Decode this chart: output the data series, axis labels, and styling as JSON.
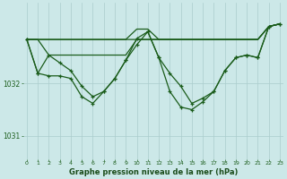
{
  "title": "Graphe pression niveau de la mer (hPa)",
  "bg_color": "#cce8e8",
  "plot_bg": "#cce8e8",
  "grid_color": "#aacccc",
  "line_color": "#1a5c1a",
  "marker_color": "#1a5c1a",
  "text_color": "#1a5c1a",
  "xlabel_color": "#1a4c1a",
  "ylim": [
    1030.55,
    1033.55
  ],
  "yticks": [
    1031,
    1032
  ],
  "xlim": [
    -0.3,
    23.3
  ],
  "xticks": [
    0,
    1,
    2,
    3,
    4,
    5,
    6,
    7,
    8,
    9,
    10,
    11,
    12,
    13,
    14,
    15,
    16,
    17,
    18,
    19,
    20,
    21,
    22,
    23
  ],
  "series1": [
    1032.85,
    1032.2,
    1032.15,
    1032.15,
    1032.1,
    1031.75,
    1031.62,
    1031.85,
    1032.1,
    1032.45,
    1032.87,
    1033.0,
    1032.5,
    1031.85,
    1031.55,
    1031.5,
    1031.65,
    1031.85,
    1032.25,
    1032.5,
    1032.55,
    1032.5,
    1033.1,
    1033.15
  ],
  "series2": [
    1032.85,
    1032.85,
    1032.55,
    1032.55,
    1032.55,
    1032.55,
    1032.55,
    1032.55,
    1032.55,
    1032.55,
    1032.85,
    1032.85,
    1032.85,
    1032.85,
    1032.85,
    1032.85,
    1032.85,
    1032.85,
    1032.85,
    1032.85,
    1032.85,
    1032.85,
    1033.1,
    1033.15
  ],
  "series3": [
    1032.85,
    1032.85,
    1032.85,
    1032.85,
    1032.85,
    1032.85,
    1032.85,
    1032.85,
    1032.85,
    1032.85,
    1033.05,
    1033.05,
    1032.85,
    1032.85,
    1032.85,
    1032.85,
    1032.85,
    1032.85,
    1032.85,
    1032.85,
    1032.85,
    1032.85,
    1033.1,
    1033.15
  ],
  "series4": [
    1032.85,
    1032.85,
    1032.85,
    1032.85,
    1032.85,
    1032.85,
    1032.85,
    1032.85,
    1032.85,
    1032.85,
    1032.85,
    1032.85,
    1032.85,
    1032.85,
    1032.85,
    1032.85,
    1032.85,
    1032.85,
    1032.85,
    1032.85,
    1032.85,
    1032.85,
    1033.1,
    1033.15
  ],
  "series5": [
    1032.85,
    1032.2,
    1032.55,
    1032.4,
    1032.25,
    1031.95,
    1031.75,
    1031.85,
    1032.1,
    1032.45,
    1032.75,
    1033.0,
    1032.5,
    1032.2,
    1031.95,
    1031.62,
    1031.72,
    1031.85,
    1032.25,
    1032.5,
    1032.55,
    1032.5,
    1033.1,
    1033.15
  ]
}
